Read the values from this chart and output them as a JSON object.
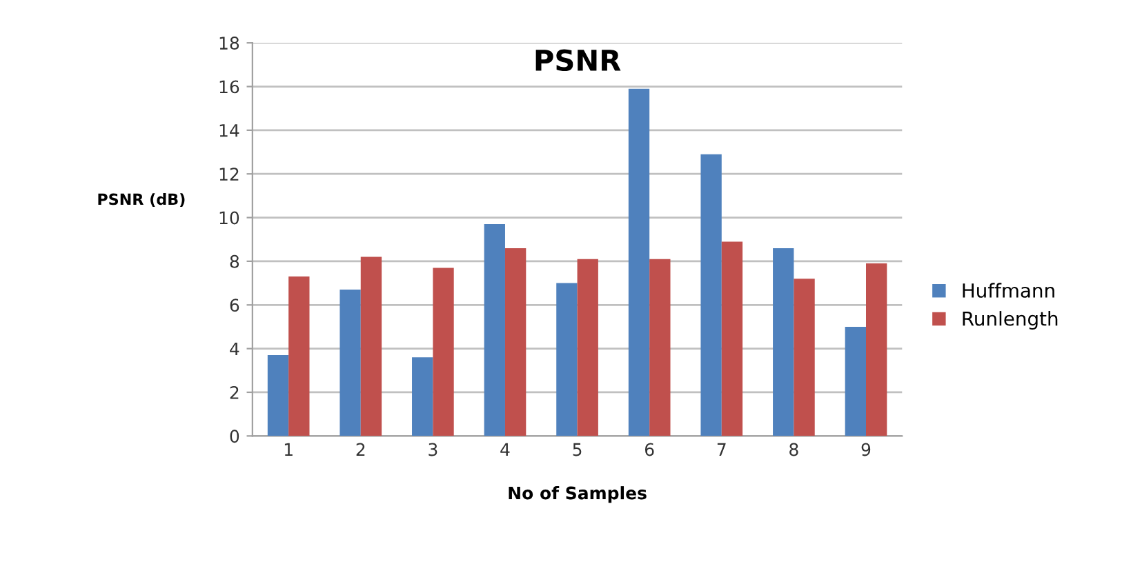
{
  "chart_data": {
    "type": "bar",
    "title": "PSNR",
    "xlabel": "No of Samples",
    "ylabel": "PSNR (dB)",
    "categories": [
      "1",
      "2",
      "3",
      "4",
      "5",
      "6",
      "7",
      "8",
      "9"
    ],
    "series": [
      {
        "name": "Huffmann",
        "color": "#4f81bd",
        "values": [
          3.7,
          6.7,
          3.6,
          9.7,
          7.0,
          15.9,
          12.9,
          8.6,
          5.0
        ]
      },
      {
        "name": "Runlength",
        "color": "#c0504d",
        "values": [
          7.3,
          8.2,
          7.7,
          8.6,
          8.1,
          8.1,
          8.9,
          7.2,
          7.9
        ]
      }
    ],
    "ylim": [
      0,
      18
    ],
    "yticks": [
      0,
      2,
      4,
      6,
      8,
      10,
      12,
      14,
      16,
      18
    ],
    "grid": "y",
    "legend": "right"
  }
}
